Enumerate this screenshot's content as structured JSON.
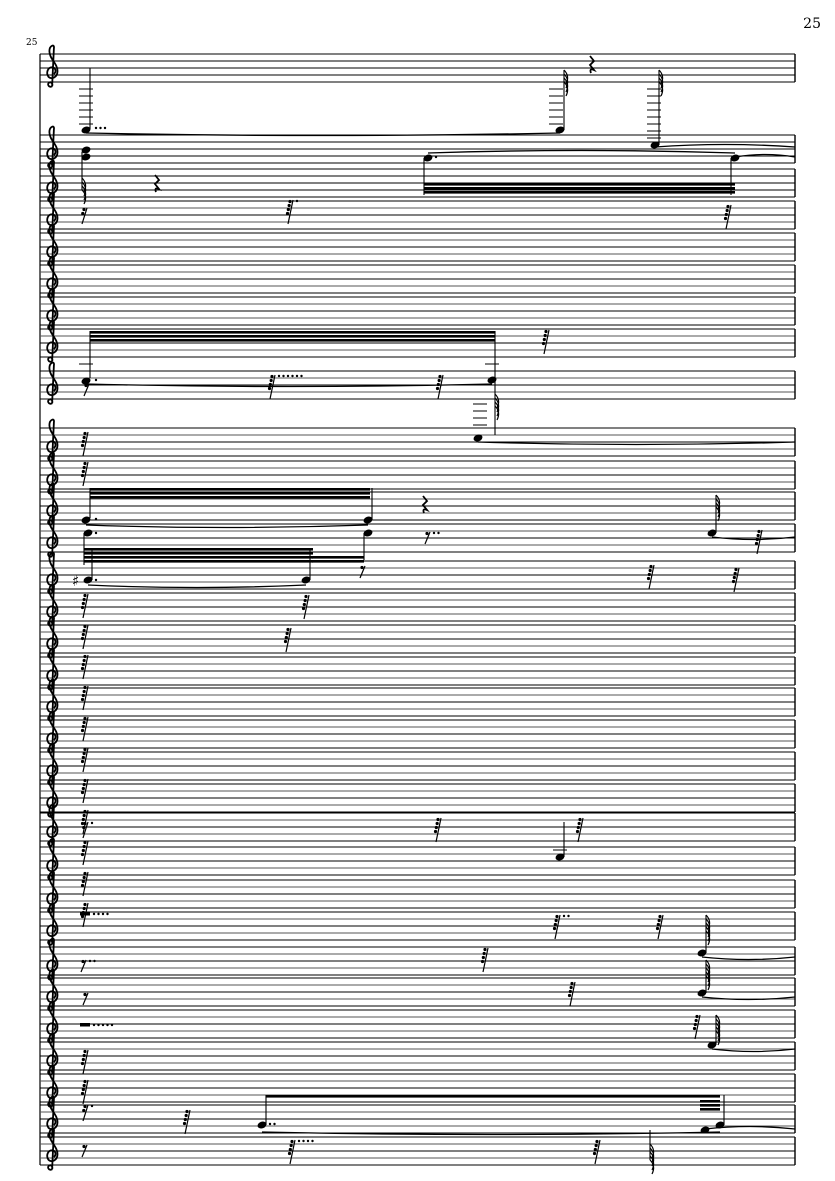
{
  "page": {
    "number": "25"
  },
  "score": {
    "measure_number": "25",
    "clef": "treble",
    "staff_count": 32,
    "accidental": "♯",
    "ink_color": "#000000"
  }
}
